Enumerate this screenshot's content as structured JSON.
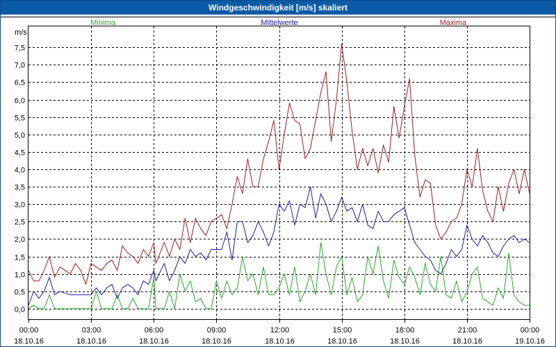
{
  "chart_data": {
    "type": "line",
    "title": "Windgeschwindigkeit [m/s] skaliert",
    "ylabel": "m/s",
    "ylim": [
      -0.3,
      8.1
    ],
    "yticks": [
      "0,0",
      "0,5",
      "1,0",
      "1,5",
      "2,0",
      "2,5",
      "3,0",
      "3,5",
      "4,0",
      "4,5",
      "5,0",
      "5,5",
      "6,0",
      "6,5",
      "7,0",
      "7,5"
    ],
    "xlim": [
      0,
      24
    ],
    "xtick_times": [
      "00:00",
      "03:00",
      "06:00",
      "09:00",
      "12:00",
      "15:00",
      "18:00",
      "21:00",
      "00:00"
    ],
    "xtick_dates": [
      "18.10.16",
      "18.10.16",
      "18.10.16",
      "18.10.16",
      "18.10.16",
      "18.10.16",
      "18.10.16",
      "18.10.16",
      "19.10.16"
    ],
    "legend": [
      {
        "name": "Minima",
        "color": "#22aa22"
      },
      {
        "name": "Mittelwerte",
        "color": "#1a1aa0"
      },
      {
        "name": "Maxima",
        "color": "#a01a1a"
      }
    ],
    "series": [
      {
        "name": "Minima",
        "color": "#22aa22",
        "points": [
          [
            0,
            0.0
          ],
          [
            0.25,
            0.1
          ],
          [
            0.5,
            0.0
          ],
          [
            0.75,
            0.0
          ],
          [
            1,
            0.4
          ],
          [
            1.25,
            0.0
          ],
          [
            1.5,
            0.0
          ],
          [
            2,
            0.0
          ],
          [
            2.5,
            0.0
          ],
          [
            3,
            0.0
          ],
          [
            3.25,
            0.5
          ],
          [
            3.5,
            0.0
          ],
          [
            3.75,
            0.0
          ],
          [
            4,
            0.0
          ],
          [
            4.25,
            0.4
          ],
          [
            4.5,
            0.0
          ],
          [
            4.75,
            0.0
          ],
          [
            5,
            0.3
          ],
          [
            5.25,
            0.0
          ],
          [
            5.5,
            0.0
          ],
          [
            5.75,
            0.0
          ],
          [
            6,
            0.9
          ],
          [
            6.1,
            0.0
          ],
          [
            6.5,
            0.0
          ],
          [
            6.75,
            0.5
          ],
          [
            7,
            0.0
          ],
          [
            7.25,
            1.0
          ],
          [
            7.5,
            0.5
          ],
          [
            7.75,
            0.8
          ],
          [
            8,
            0.2
          ],
          [
            8.25,
            0.3
          ],
          [
            8.5,
            0.0
          ],
          [
            8.75,
            0.0
          ],
          [
            9,
            0.8
          ],
          [
            9.25,
            0.3
          ],
          [
            9.5,
            0.8
          ],
          [
            9.75,
            0.4
          ],
          [
            10,
            0.6
          ],
          [
            10.25,
            1.5
          ],
          [
            10.5,
            0.8
          ],
          [
            10.75,
            1.0
          ],
          [
            11,
            0.4
          ],
          [
            11.25,
            1.2
          ],
          [
            11.5,
            0.4
          ],
          [
            11.75,
            0.4
          ],
          [
            12,
            0.6
          ],
          [
            12.25,
            1.0
          ],
          [
            12.5,
            0.4
          ],
          [
            12.75,
            1.2
          ],
          [
            13,
            0.2
          ],
          [
            13.25,
            0.5
          ],
          [
            13.5,
            1.0
          ],
          [
            13.75,
            0.4
          ],
          [
            14,
            1.9
          ],
          [
            14.25,
            1.0
          ],
          [
            14.5,
            0.4
          ],
          [
            14.75,
            1.2
          ],
          [
            15,
            1.5
          ],
          [
            15.25,
            0.4
          ],
          [
            15.5,
            0.9
          ],
          [
            15.75,
            0.2
          ],
          [
            16,
            0.4
          ],
          [
            16.25,
            1.5
          ],
          [
            16.5,
            1.0
          ],
          [
            16.75,
            1.8
          ],
          [
            17,
            0.8
          ],
          [
            17.25,
            0.3
          ],
          [
            17.5,
            1.4
          ],
          [
            17.75,
            0.9
          ],
          [
            18,
            0.7
          ],
          [
            18.25,
            1.2
          ],
          [
            18.5,
            0.9
          ],
          [
            18.75,
            0.4
          ],
          [
            19,
            1.3
          ],
          [
            19.25,
            0.7
          ],
          [
            19.5,
            0.5
          ],
          [
            19.75,
            1.5
          ],
          [
            20,
            0.4
          ],
          [
            20.25,
            0.3
          ],
          [
            20.5,
            0.8
          ],
          [
            20.75,
            0.2
          ],
          [
            21,
            0.5
          ],
          [
            21.25,
            1.0
          ],
          [
            21.5,
            1.2
          ],
          [
            21.75,
            0.3
          ],
          [
            22,
            0.2
          ],
          [
            22.25,
            0.1
          ],
          [
            22.5,
            0.6
          ],
          [
            22.75,
            0.3
          ],
          [
            23,
            1.6
          ],
          [
            23.25,
            0.4
          ],
          [
            23.5,
            0.2
          ],
          [
            23.75,
            0.1
          ],
          [
            24,
            0.1
          ]
        ]
      },
      {
        "name": "Mittelwerte",
        "color": "#1a1aa0",
        "points": [
          [
            0,
            0.1
          ],
          [
            0.25,
            0.5
          ],
          [
            0.5,
            0.3
          ],
          [
            0.75,
            0.5
          ],
          [
            1,
            0.9
          ],
          [
            1.25,
            0.4
          ],
          [
            1.5,
            0.5
          ],
          [
            2,
            0.4
          ],
          [
            2.5,
            0.4
          ],
          [
            3,
            0.4
          ],
          [
            3.25,
            0.6
          ],
          [
            3.5,
            0.4
          ],
          [
            3.75,
            0.6
          ],
          [
            4,
            0.7
          ],
          [
            4.25,
            0.3
          ],
          [
            4.5,
            0.6
          ],
          [
            4.75,
            0.7
          ],
          [
            5,
            0.6
          ],
          [
            5.25,
            0.4
          ],
          [
            5.5,
            0.8
          ],
          [
            5.75,
            0.7
          ],
          [
            6,
            1.1
          ],
          [
            6.1,
            0.8
          ],
          [
            6.5,
            1.3
          ],
          [
            6.75,
            0.8
          ],
          [
            7,
            1.1
          ],
          [
            7.25,
            1.5
          ],
          [
            7.5,
            1.3
          ],
          [
            7.75,
            1.7
          ],
          [
            8,
            1.5
          ],
          [
            8.25,
            1.6
          ],
          [
            8.5,
            1.4
          ],
          [
            8.75,
            1.7
          ],
          [
            9,
            1.7
          ],
          [
            9.25,
            1.7
          ],
          [
            9.5,
            2.2
          ],
          [
            9.75,
            1.4
          ],
          [
            10,
            2.5
          ],
          [
            10.25,
            2.5
          ],
          [
            10.5,
            1.9
          ],
          [
            10.75,
            2.1
          ],
          [
            11,
            2.5
          ],
          [
            11.25,
            2.2
          ],
          [
            11.5,
            1.8
          ],
          [
            11.75,
            2.2
          ],
          [
            12,
            3.0
          ],
          [
            12.25,
            2.8
          ],
          [
            12.5,
            3.1
          ],
          [
            12.75,
            2.4
          ],
          [
            13,
            3.0
          ],
          [
            13.25,
            2.9
          ],
          [
            13.5,
            3.5
          ],
          [
            13.75,
            2.6
          ],
          [
            14,
            3.3
          ],
          [
            14.25,
            3.0
          ],
          [
            14.5,
            2.5
          ],
          [
            14.75,
            2.8
          ],
          [
            15,
            3.2
          ],
          [
            15.25,
            2.8
          ],
          [
            15.5,
            2.9
          ],
          [
            15.75,
            2.5
          ],
          [
            16,
            3.0
          ],
          [
            16.25,
            2.4
          ],
          [
            16.5,
            2.3
          ],
          [
            16.75,
            2.8
          ],
          [
            17,
            2.5
          ],
          [
            17.25,
            2.5
          ],
          [
            17.5,
            2.7
          ],
          [
            17.75,
            2.8
          ],
          [
            18,
            2.9
          ],
          [
            18.25,
            2.4
          ],
          [
            18.5,
            1.9
          ],
          [
            18.75,
            1.7
          ],
          [
            19,
            1.5
          ],
          [
            19.25,
            1.4
          ],
          [
            19.5,
            1.1
          ],
          [
            19.75,
            1.0
          ],
          [
            20,
            1.3
          ],
          [
            20.25,
            1.7
          ],
          [
            20.5,
            1.5
          ],
          [
            20.75,
            1.7
          ],
          [
            21,
            2.4
          ],
          [
            21.25,
            2.0
          ],
          [
            21.5,
            1.8
          ],
          [
            21.75,
            2.1
          ],
          [
            22,
            1.9
          ],
          [
            22.25,
            1.6
          ],
          [
            22.5,
            1.5
          ],
          [
            22.75,
            1.8
          ],
          [
            23,
            2.0
          ],
          [
            23.25,
            2.1
          ],
          [
            23.5,
            1.9
          ],
          [
            23.75,
            2.0
          ],
          [
            24,
            1.9
          ]
        ]
      },
      {
        "name": "Maxima",
        "color": "#a01a1a",
        "points": [
          [
            0,
            1.1
          ],
          [
            0.25,
            0.8
          ],
          [
            0.5,
            0.8
          ],
          [
            0.75,
            1.1
          ],
          [
            1,
            1.5
          ],
          [
            1.25,
            0.9
          ],
          [
            1.5,
            1.2
          ],
          [
            2,
            1.0
          ],
          [
            2.25,
            1.3
          ],
          [
            2.5,
            1.1
          ],
          [
            2.75,
            0.7
          ],
          [
            3,
            1.3
          ],
          [
            3.25,
            1.2
          ],
          [
            3.5,
            1.1
          ],
          [
            3.75,
            1.3
          ],
          [
            4,
            1.4
          ],
          [
            4.25,
            1.1
          ],
          [
            4.5,
            1.8
          ],
          [
            4.75,
            1.6
          ],
          [
            5,
            1.5
          ],
          [
            5.25,
            1.3
          ],
          [
            5.5,
            1.7
          ],
          [
            5.75,
            1.5
          ],
          [
            6,
            1.9
          ],
          [
            6.1,
            1.3
          ],
          [
            6.5,
            1.9
          ],
          [
            6.75,
            1.5
          ],
          [
            7,
            2.0
          ],
          [
            7.25,
            1.7
          ],
          [
            7.5,
            2.6
          ],
          [
            7.75,
            1.9
          ],
          [
            8,
            2.6
          ],
          [
            8.25,
            2.3
          ],
          [
            8.5,
            2.1
          ],
          [
            8.75,
            2.5
          ],
          [
            9,
            2.6
          ],
          [
            9.25,
            2.7
          ],
          [
            9.5,
            2.3
          ],
          [
            9.75,
            3.0
          ],
          [
            10,
            3.8
          ],
          [
            10.25,
            3.3
          ],
          [
            10.5,
            4.3
          ],
          [
            10.75,
            3.5
          ],
          [
            11,
            3.5
          ],
          [
            11.25,
            4.3
          ],
          [
            11.5,
            4.8
          ],
          [
            11.75,
            5.4
          ],
          [
            12,
            4.0
          ],
          [
            12.25,
            5.0
          ],
          [
            12.5,
            5.9
          ],
          [
            12.75,
            5.4
          ],
          [
            13,
            5.3
          ],
          [
            13.25,
            4.3
          ],
          [
            13.5,
            4.6
          ],
          [
            13.75,
            5.4
          ],
          [
            14,
            6.2
          ],
          [
            14.25,
            6.8
          ],
          [
            14.5,
            4.8
          ],
          [
            14.75,
            6.0
          ],
          [
            15,
            7.6
          ],
          [
            15.25,
            6.5
          ],
          [
            15.5,
            5.1
          ],
          [
            15.75,
            4.0
          ],
          [
            16,
            4.6
          ],
          [
            16.25,
            4.1
          ],
          [
            16.5,
            4.6
          ],
          [
            16.75,
            3.9
          ],
          [
            17,
            4.7
          ],
          [
            17.25,
            4.2
          ],
          [
            17.5,
            5.8
          ],
          [
            17.75,
            4.9
          ],
          [
            18,
            5.8
          ],
          [
            18.25,
            6.6
          ],
          [
            18.5,
            4.4
          ],
          [
            18.75,
            3.2
          ],
          [
            19,
            3.7
          ],
          [
            19.25,
            3.6
          ],
          [
            19.5,
            2.4
          ],
          [
            19.75,
            2.0
          ],
          [
            20,
            2.2
          ],
          [
            20.25,
            2.5
          ],
          [
            20.5,
            2.6
          ],
          [
            20.75,
            3.0
          ],
          [
            21,
            4.0
          ],
          [
            21.25,
            3.5
          ],
          [
            21.5,
            4.6
          ],
          [
            21.75,
            3.4
          ],
          [
            22,
            2.8
          ],
          [
            22.25,
            2.5
          ],
          [
            22.5,
            3.5
          ],
          [
            22.75,
            2.8
          ],
          [
            23,
            3.6
          ],
          [
            23.25,
            4.0
          ],
          [
            23.5,
            3.3
          ],
          [
            23.75,
            4.0
          ],
          [
            24,
            3.3
          ]
        ]
      }
    ]
  }
}
